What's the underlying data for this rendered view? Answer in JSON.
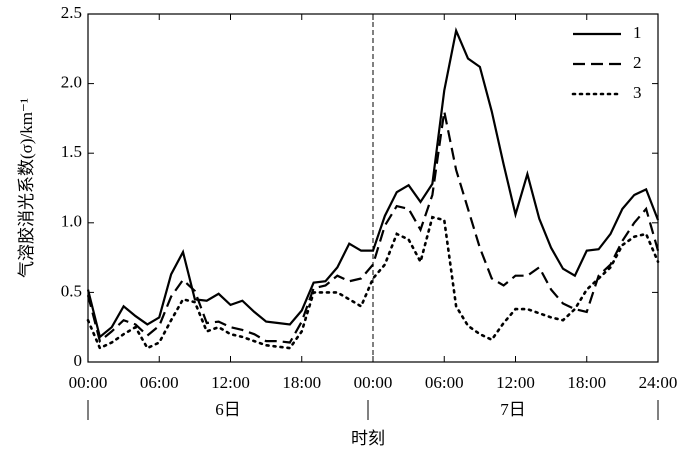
{
  "chart_data": {
    "type": "line",
    "y_label": "气溶胶消光系数(σ)/km⁻¹",
    "x_label": "时刻",
    "day_labels": [
      "6日",
      "7日"
    ],
    "divider_x": 24,
    "x": [
      0,
      1,
      2,
      3,
      4,
      5,
      6,
      7,
      8,
      9,
      10,
      11,
      12,
      13,
      14,
      15,
      16,
      17,
      18,
      19,
      20,
      21,
      22,
      23,
      24,
      25,
      26,
      27,
      28,
      29,
      30,
      31,
      32,
      33,
      34,
      35,
      36,
      37,
      38,
      39,
      40,
      41,
      42,
      43,
      44,
      45,
      46,
      47,
      48
    ],
    "series": [
      {
        "name": "1",
        "color": "#000000",
        "dash": "solid",
        "values": [
          0.52,
          0.18,
          0.25,
          0.4,
          0.33,
          0.27,
          0.32,
          0.63,
          0.79,
          0.45,
          0.44,
          0.49,
          0.41,
          0.44,
          0.36,
          0.29,
          0.28,
          0.27,
          0.37,
          0.57,
          0.58,
          0.68,
          0.85,
          0.8,
          0.8,
          1.05,
          1.22,
          1.27,
          1.15,
          1.28,
          1.95,
          2.38,
          2.18,
          2.12,
          1.8,
          1.42,
          1.06,
          1.35,
          1.03,
          0.82,
          0.67,
          0.62,
          0.8,
          0.81,
          0.92,
          1.1,
          1.2,
          1.24,
          1.02
        ]
      },
      {
        "name": "2",
        "color": "#000000",
        "dash": "dashed",
        "values": [
          0.48,
          0.15,
          0.22,
          0.3,
          0.27,
          0.19,
          0.26,
          0.47,
          0.59,
          0.51,
          0.28,
          0.29,
          0.25,
          0.23,
          0.2,
          0.15,
          0.15,
          0.14,
          0.29,
          0.53,
          0.55,
          0.62,
          0.58,
          0.6,
          0.7,
          0.98,
          1.12,
          1.1,
          0.95,
          1.2,
          1.8,
          1.38,
          1.1,
          0.82,
          0.6,
          0.55,
          0.62,
          0.62,
          0.68,
          0.52,
          0.42,
          0.38,
          0.36,
          0.62,
          0.7,
          0.87,
          1.0,
          1.1,
          0.8
        ]
      },
      {
        "name": "3",
        "color": "#000000",
        "dash": "dotted",
        "values": [
          0.3,
          0.1,
          0.14,
          0.2,
          0.25,
          0.1,
          0.14,
          0.3,
          0.45,
          0.43,
          0.22,
          0.25,
          0.2,
          0.18,
          0.15,
          0.12,
          0.11,
          0.1,
          0.22,
          0.5,
          0.5,
          0.5,
          0.45,
          0.4,
          0.6,
          0.7,
          0.92,
          0.88,
          0.72,
          1.04,
          1.02,
          0.4,
          0.26,
          0.2,
          0.16,
          0.28,
          0.38,
          0.38,
          0.35,
          0.32,
          0.3,
          0.38,
          0.52,
          0.6,
          0.68,
          0.84,
          0.9,
          0.92,
          0.72
        ]
      }
    ],
    "xlim": [
      0,
      48
    ],
    "xticks": [
      {
        "value": 0,
        "label": "00:00"
      },
      {
        "value": 6,
        "label": "06:00"
      },
      {
        "value": 12,
        "label": "12:00"
      },
      {
        "value": 18,
        "label": "18:00"
      },
      {
        "value": 24,
        "label": "00:00"
      },
      {
        "value": 30,
        "label": "06:00"
      },
      {
        "value": 36,
        "label": "12:00"
      },
      {
        "value": 42,
        "label": "18:00"
      },
      {
        "value": 48,
        "label": "24:00"
      }
    ],
    "ylim": [
      0,
      2.5
    ],
    "yticks": [
      0,
      0.5,
      {
        "value": 1,
        "label": "1.0"
      },
      1.5,
      {
        "value": 2,
        "label": "2.0"
      },
      2.5
    ],
    "legend": "upper right"
  }
}
